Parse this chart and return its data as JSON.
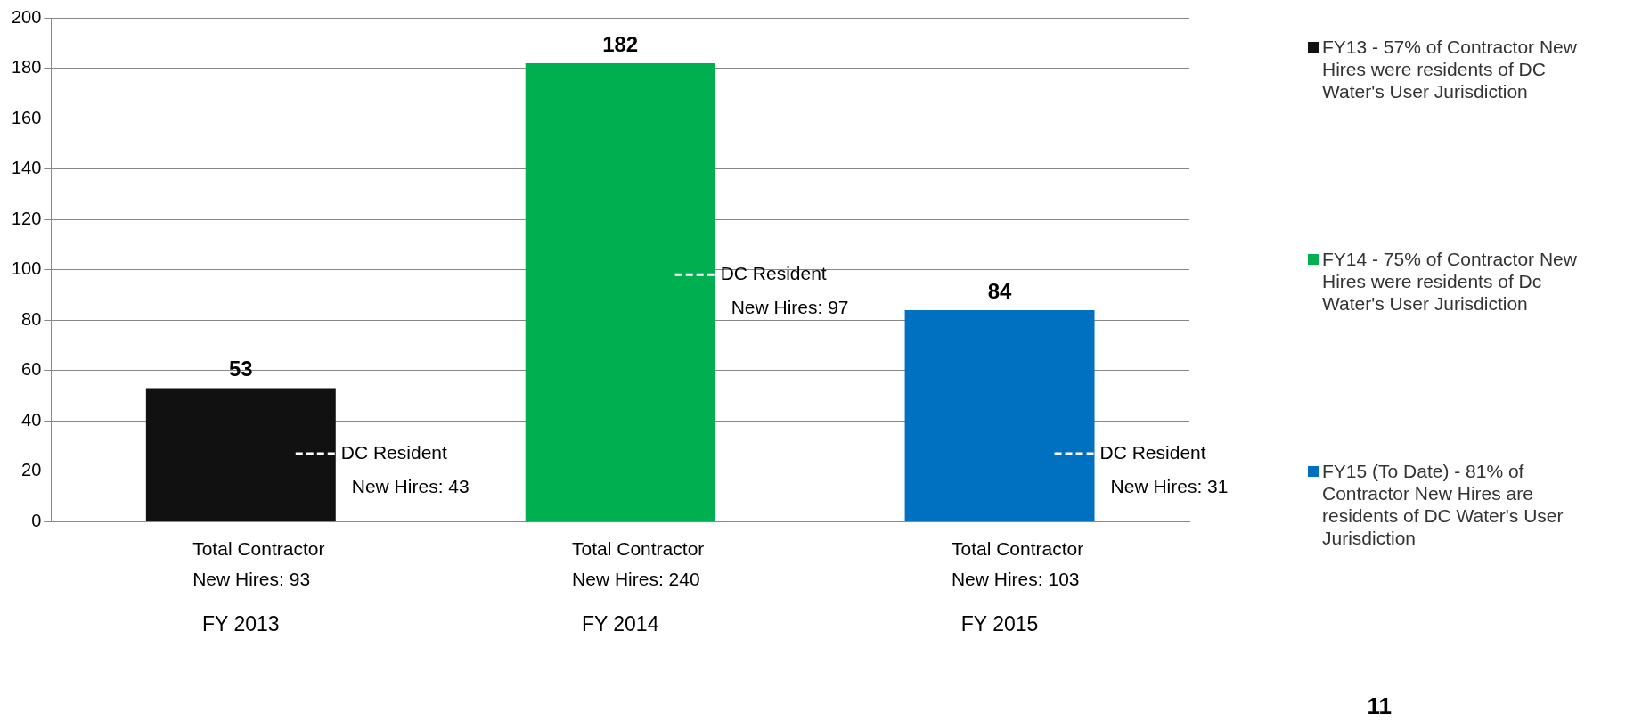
{
  "chart_data": {
    "type": "bar",
    "categories": [
      "FY 2013",
      "FY 2014",
      "FY 2015"
    ],
    "series": [
      {
        "name": "FY13 - 57% of Contractor New Hires were residents of DC Water's User Jurisdiction",
        "color": "#111111",
        "values": [
          53,
          null,
          null
        ]
      },
      {
        "name": "FY14 - 75% of Contractor New Hires were residents of Dc Water's User Jurisdiction",
        "color": "#00b050",
        "values": [
          null,
          182,
          null
        ]
      },
      {
        "name": "FY15 (To Date) - 81% of Contractor New Hires are residents of DC Water's User Jurisdiction",
        "color": "#0070c0",
        "values": [
          null,
          null,
          84
        ]
      }
    ],
    "ylim": [
      0,
      200
    ],
    "yticks": [
      0,
      20,
      40,
      60,
      80,
      100,
      120,
      140,
      160,
      180,
      200
    ],
    "grid": "y",
    "legend": "right",
    "data_labels": true,
    "annotations": [
      "DC Resident New Hires: 43",
      "DC Resident New Hires: 97",
      "DC Resident New Hires: 31",
      "Total Contractor New Hires: 93",
      "Total Contractor New Hires: 240",
      "Total Contractor New Hires: 103",
      "11"
    ]
  }
}
